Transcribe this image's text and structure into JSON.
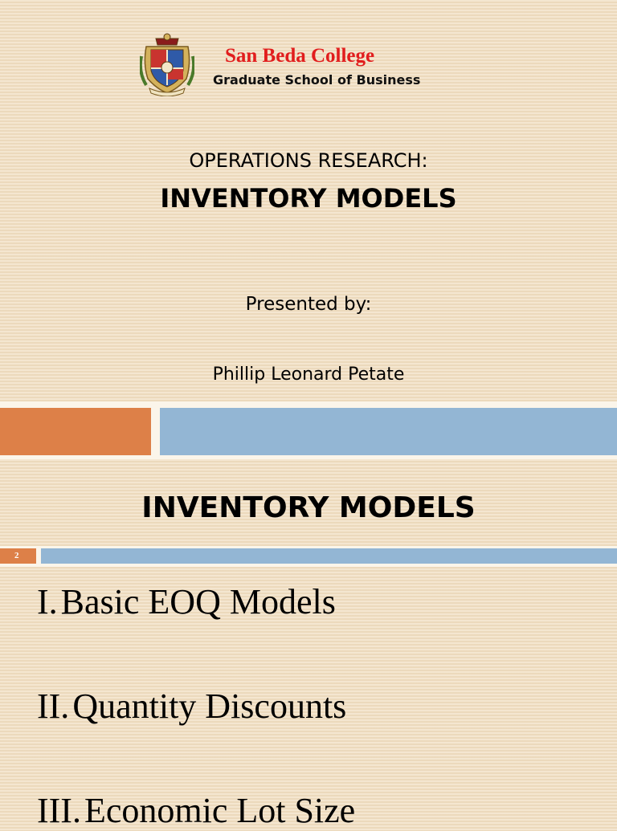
{
  "header": {
    "college_name": "San Beda College",
    "school_name": "Graduate School of Business"
  },
  "slide1": {
    "subtitle": "OPERATIONS RESEARCH:",
    "title": "INVENTORY MODELS",
    "presented_label": "Presented by:",
    "presenter": "Phillip Leonard Petate"
  },
  "slide2": {
    "page_number": "2",
    "title": "INVENTORY MODELS",
    "items": [
      {
        "numeral": "I.",
        "text": "Basic EOQ Models"
      },
      {
        "numeral": "II.",
        "text": "Quantity Discounts"
      },
      {
        "numeral": "III.",
        "text": "Economic Lot Size"
      }
    ]
  },
  "colors": {
    "background": "#f1dfc3",
    "accent_orange": "#dd8048",
    "accent_blue": "#93b6d4",
    "college_red": "#e11d1d"
  }
}
